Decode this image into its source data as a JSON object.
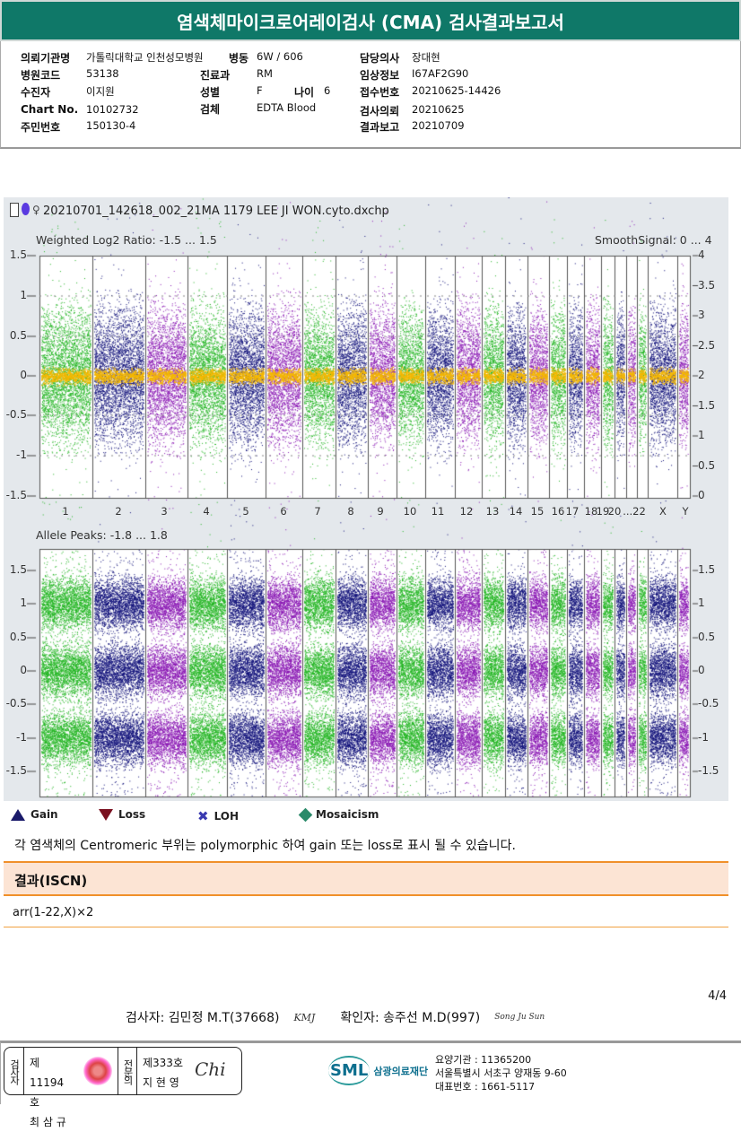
{
  "title": "염색체마이크로어레이검사 (CMA) 검사결과보고서",
  "header": {
    "institution_label": "의뢰기관명",
    "institution": "가톨릭대학교 인천성모병원",
    "ward_label": "병동",
    "ward": "6W / 606",
    "doctor_label": "담당의사",
    "doctor": "장대현",
    "hospcode_label": "병원코드",
    "hospcode": "53138",
    "dept_label": "진료과",
    "dept": "RM",
    "clinical_label": "임상정보",
    "clinical": "I67AF2G90",
    "patient_label": "수진자",
    "patient": "이지원",
    "sex_label": "성별",
    "sex": "F",
    "age_label": "나이",
    "age": "6",
    "receipt_label": "접수번호",
    "receipt": "20210625-14426",
    "chart_label": "Chart No.",
    "chart": "10102732",
    "specimen_label": "검체",
    "specimen": "EDTA Blood",
    "request_label": "검사의뢰",
    "request": "20210625",
    "id_label": "주민번호",
    "id": "150130-4",
    "report_label": "결과보고",
    "report": "20210709"
  },
  "chart": {
    "filename": "20210701_142618_002_21MA 1179 LEE JI WON.cyto.dxchp",
    "top_title": "Weighted Log2 Ratio: -1.5 ... 1.5",
    "top_right_title": "SmoothSignal: 0 ... 4",
    "top_left_ticks": [
      "1.5",
      "1",
      "0.5",
      "0",
      "-0.5",
      "-1",
      "-1.5"
    ],
    "top_right_ticks": [
      "4",
      "3.5",
      "3",
      "2.5",
      "2",
      "1.5",
      "1",
      "0.5",
      "0"
    ],
    "chromosomes": [
      "1",
      "2",
      "3",
      "4",
      "5",
      "6",
      "7",
      "8",
      "9",
      "10",
      "11",
      "12",
      "13",
      "14",
      "15",
      "16",
      "17",
      "18",
      "19",
      "20",
      "...22",
      "X",
      "Y"
    ],
    "bottom_title": "Allele Peaks: -1.8 ... 1.8",
    "bottom_ticks": [
      "1.5",
      "1",
      "0.5",
      "0",
      "-0.5",
      "-1",
      "-1.5"
    ],
    "colors": {
      "green": "#22b522",
      "navy": "#10107a",
      "purple": "#8a18b4",
      "orange": "#f5b800"
    }
  },
  "legend": [
    "Gain",
    "Loss",
    "LOH",
    "Mosaicism"
  ],
  "note": "각 염색체의 Centromeric 부위는 polymorphic 하여 gain 또는 loss로 표시 될 수 있습니다.",
  "result": {
    "header": "결과(ISCN)",
    "value": "arr(1-22,X)×2"
  },
  "page": "4/4",
  "signoff": {
    "tester": "검사자: 김민정 M.T(37668)",
    "tester_sig": "KMJ",
    "confirmer": "확인자: 송주선 M.D(997)",
    "confirmer_sig": "Song Ju Sun"
  },
  "footer": {
    "stamp1_role": "검사자",
    "stamp1_no": "제11194호",
    "stamp1_name": "최 삼 규",
    "stamp2_role": "전문의",
    "stamp2_no": "제333호",
    "stamp2_name": "지 현 영",
    "stamp2_sig": "Chi",
    "logo": "SML",
    "org": "삼광의료재단",
    "code": "요양기관 : 11365200",
    "address": "서울특별시 서초구 양재동 9-60",
    "phone": "대표번호 : 1661-5117"
  }
}
